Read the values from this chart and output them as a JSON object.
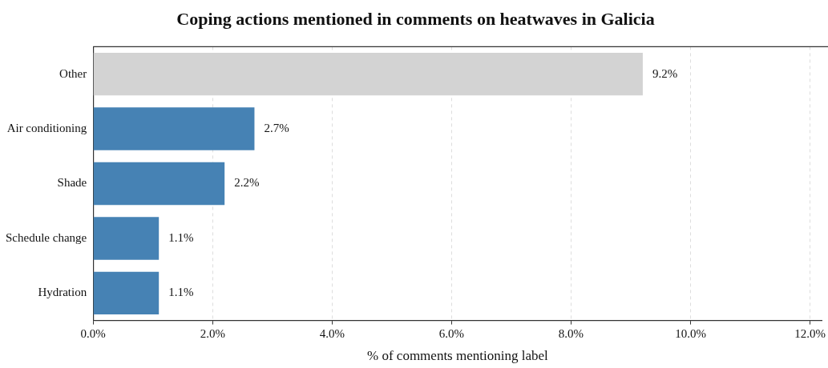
{
  "chart_data": {
    "type": "bar",
    "orientation": "horizontal",
    "title": "Coping actions mentioned in comments on heatwaves in Galicia",
    "xlabel": "% of comments mentioning label",
    "categories": [
      "Other",
      "Air conditioning",
      "Shade",
      "Schedule change",
      "Hydration"
    ],
    "values": [
      9.2,
      2.7,
      2.2,
      1.1,
      1.1
    ],
    "colors": [
      "#d3d3d3",
      "#4682b4",
      "#4682b4",
      "#4682b4",
      "#4682b4"
    ],
    "value_labels": [
      "9.2%",
      "2.7%",
      "2.2%",
      "1.1%",
      "1.1%"
    ],
    "xlim": [
      0,
      12.2
    ],
    "xticks": [
      {
        "value": 0,
        "label": "0.0%"
      },
      {
        "value": 2,
        "label": "2.0%"
      },
      {
        "value": 4,
        "label": "4.0%"
      },
      {
        "value": 6,
        "label": "6.0%"
      },
      {
        "value": 8,
        "label": "8.0%"
      },
      {
        "value": 10,
        "label": "10.0%"
      },
      {
        "value": 12,
        "label": "12.0%"
      }
    ],
    "grid": "x"
  }
}
